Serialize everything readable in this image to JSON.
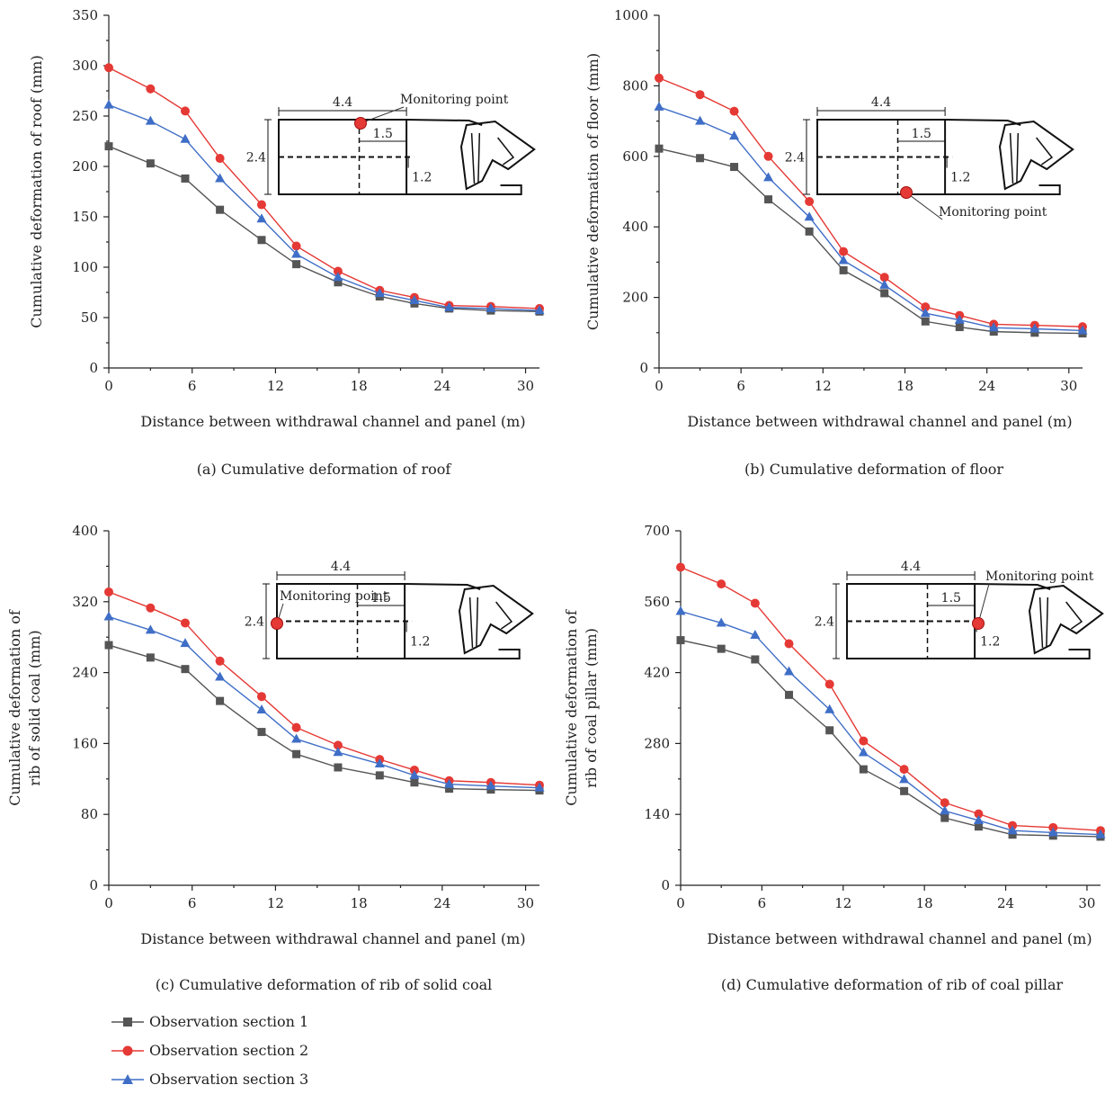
{
  "colors": {
    "s1": "#555555",
    "s2": "#e53935",
    "s3": "#3f6ec7",
    "axis": "#222222",
    "sketch": "#111111",
    "point": "#e53935"
  },
  "legend": [
    {
      "name": "Observation section 1",
      "color": "#555555",
      "marker": "square"
    },
    {
      "name": "Observation section 2",
      "color": "#e53935",
      "marker": "circle"
    },
    {
      "name": "Observation section 3",
      "color": "#3f6ec7",
      "marker": "triangle"
    }
  ],
  "chart_data": [
    {
      "type": "line",
      "caption": "(a) Cumulative deformation of roof",
      "ylabel": [
        "Cumulative deformation of roof (mm)"
      ],
      "xlabel": "Distance between withdrawal channel and panel (m)",
      "xlim": [
        0,
        31
      ],
      "ylim": [
        0,
        350
      ],
      "xticks": [
        0,
        6,
        12,
        18,
        24,
        30
      ],
      "yticks": [
        0,
        50,
        100,
        150,
        200,
        250,
        300,
        350
      ],
      "x": [
        0,
        3,
        5.5,
        8,
        11,
        13.5,
        16.5,
        19.5,
        22,
        24.5,
        27.5,
        31
      ],
      "series": [
        {
          "name": "Observation section 1",
          "values": [
            220,
            203,
            188,
            157,
            127,
            103,
            85,
            71,
            64,
            59,
            57,
            56
          ]
        },
        {
          "name": "Observation section 2",
          "values": [
            298,
            277,
            255,
            208,
            162,
            121,
            96,
            77,
            70,
            62,
            61,
            59
          ]
        },
        {
          "name": "Observation section 3",
          "values": [
            261,
            245,
            227,
            188,
            148,
            113,
            90,
            74,
            67,
            60,
            59,
            57
          ]
        }
      ],
      "inset": {
        "labels": [
          "4.4",
          "1.5",
          "2.4",
          "1.2"
        ],
        "point_label": "Monitoring point",
        "point_location": "roof"
      }
    },
    {
      "type": "line",
      "caption": "(b) Cumulative deformation of floor",
      "ylabel": [
        "Cumulative deformation of floor (mm)"
      ],
      "xlabel": "Distance between withdrawal channel and panel (m)",
      "xlim": [
        0,
        31
      ],
      "ylim": [
        0,
        1000
      ],
      "xticks": [
        0,
        6,
        12,
        18,
        24,
        30
      ],
      "yticks": [
        0,
        200,
        400,
        600,
        800,
        1000
      ],
      "x": [
        0,
        3,
        5.5,
        8,
        11,
        13.5,
        16.5,
        19.5,
        22,
        24.5,
        27.5,
        31
      ],
      "series": [
        {
          "name": "Observation section 1",
          "values": [
            622,
            595,
            570,
            478,
            387,
            277,
            212,
            132,
            116,
            103,
            100,
            98
          ]
        },
        {
          "name": "Observation section 2",
          "values": [
            822,
            775,
            728,
            600,
            472,
            330,
            257,
            173,
            149,
            124,
            121,
            117
          ]
        },
        {
          "name": "Observation section 3",
          "values": [
            740,
            700,
            658,
            540,
            428,
            305,
            235,
            155,
            136,
            114,
            111,
            106
          ]
        }
      ],
      "inset": {
        "labels": [
          "4.4",
          "1.5",
          "2.4",
          "1.2"
        ],
        "point_label": "Monitoring point",
        "point_location": "floor"
      }
    },
    {
      "type": "line",
      "caption": "(c) Cumulative deformation of rib of solid coal",
      "ylabel": [
        "Cumulative deformation of",
        "rib of solid coal (mm)"
      ],
      "xlabel": "Distance between withdrawal channel and panel (m)",
      "xlim": [
        0,
        31
      ],
      "ylim": [
        0,
        400
      ],
      "xticks": [
        0,
        6,
        12,
        18,
        24,
        30
      ],
      "yticks": [
        0,
        80,
        160,
        240,
        320,
        400
      ],
      "x": [
        0,
        3,
        5.5,
        8,
        11,
        13.5,
        16.5,
        19.5,
        22,
        24.5,
        27.5,
        31
      ],
      "series": [
        {
          "name": "Observation section 1",
          "values": [
            271,
            257,
            244,
            208,
            173,
            148,
            133,
            124,
            116,
            109,
            108,
            107
          ]
        },
        {
          "name": "Observation section 2",
          "values": [
            331,
            313,
            296,
            253,
            213,
            178,
            158,
            142,
            130,
            118,
            116,
            113
          ]
        },
        {
          "name": "Observation section 3",
          "values": [
            303,
            288,
            273,
            235,
            198,
            165,
            150,
            137,
            124,
            114,
            112,
            110
          ]
        }
      ],
      "inset": {
        "labels": [
          "4.4",
          "1.5",
          "2.4",
          "1.2"
        ],
        "point_label": "Monitoring point",
        "point_location": "solid-coal-rib"
      }
    },
    {
      "type": "line",
      "caption": "(d) Cumulative deformation of rib of coal pillar",
      "ylabel": [
        "Cumulative deformation of",
        "rib of coal pillar (mm)"
      ],
      "xlabel": "Distance between withdrawal channel and panel (m)",
      "xlim": [
        0,
        31
      ],
      "ylim": [
        0,
        700
      ],
      "xticks": [
        0,
        6,
        12,
        18,
        24,
        30
      ],
      "yticks": [
        0,
        140,
        280,
        420,
        560,
        700
      ],
      "x": [
        0,
        3,
        5.5,
        8,
        11,
        13.5,
        16.5,
        19.5,
        22,
        24.5,
        27.5,
        31
      ],
      "series": [
        {
          "name": "Observation section 1",
          "values": [
            484,
            467,
            446,
            376,
            306,
            229,
            186,
            133,
            116,
            100,
            98,
            96
          ]
        },
        {
          "name": "Observation section 2",
          "values": [
            628,
            595,
            557,
            477,
            397,
            285,
            229,
            163,
            141,
            118,
            114,
            108
          ]
        },
        {
          "name": "Observation section 3",
          "values": [
            541,
            518,
            494,
            422,
            347,
            262,
            209,
            147,
            128,
            108,
            104,
            100
          ]
        }
      ],
      "inset": {
        "labels": [
          "4.4",
          "1.5",
          "2.4",
          "1.2"
        ],
        "point_label": "Monitoring point",
        "point_location": "coal-pillar-rib"
      }
    }
  ]
}
